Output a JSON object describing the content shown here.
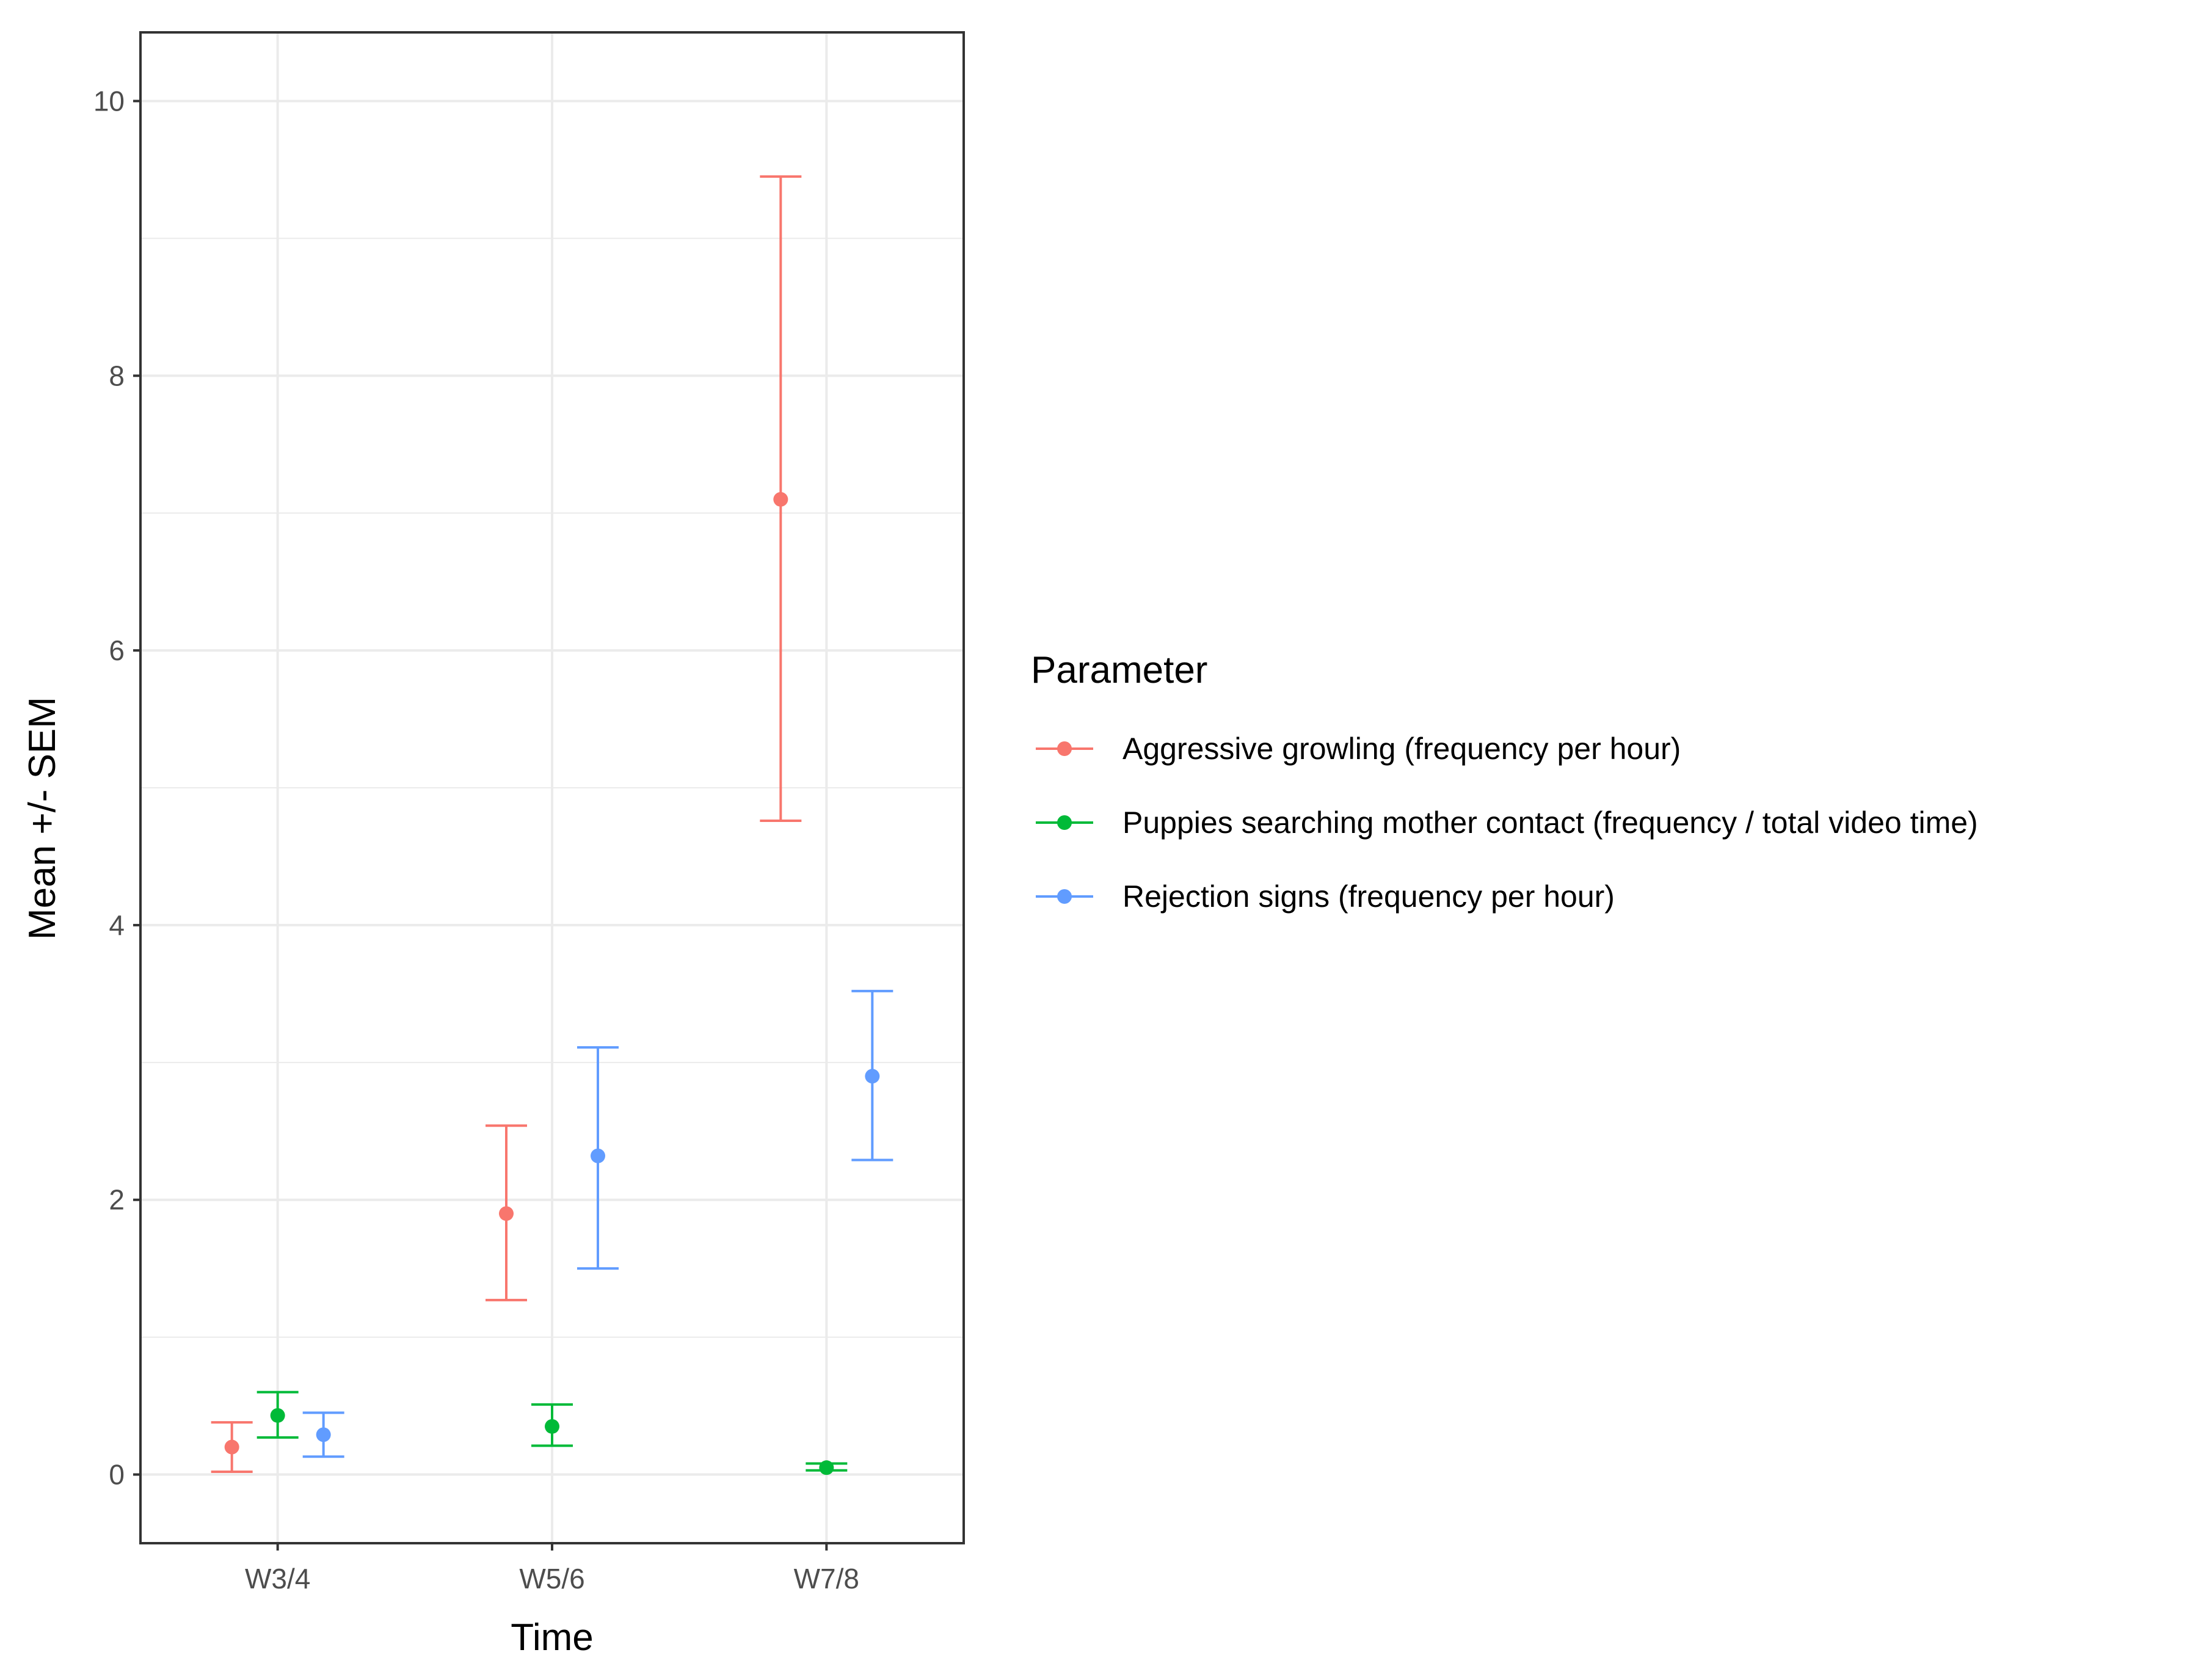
{
  "chart_data": {
    "type": "scatter",
    "title": "",
    "xlabel": "Time",
    "ylabel": "Mean +/- SEM",
    "categories": [
      "W3/4",
      "W5/6",
      "W7/8"
    ],
    "ylim": [
      -0.5,
      10.5
    ],
    "yticks": [
      0,
      2,
      4,
      6,
      8,
      10
    ],
    "grid": true,
    "legend": {
      "title": "Parameter",
      "placement": "right"
    },
    "series": [
      {
        "name": "Aggressive growling (frequency per hour)",
        "color": "#F8766D",
        "mean": [
          0.2,
          1.9,
          7.1
        ],
        "lower": [
          0.02,
          1.27,
          4.76
        ],
        "upper": [
          0.38,
          2.54,
          9.45
        ]
      },
      {
        "name": "Puppies searching mother contact (frequency / total video time)",
        "color": "#00BA38",
        "mean": [
          0.43,
          0.35,
          0.05
        ],
        "lower": [
          0.27,
          0.21,
          0.03
        ],
        "upper": [
          0.6,
          0.51,
          0.08
        ]
      },
      {
        "name": "Rejection signs (frequency per hour)",
        "color": "#619CFF",
        "mean": [
          0.29,
          2.32,
          2.9
        ],
        "lower": [
          0.13,
          1.5,
          2.29
        ],
        "upper": [
          0.45,
          3.11,
          3.52
        ]
      }
    ]
  }
}
